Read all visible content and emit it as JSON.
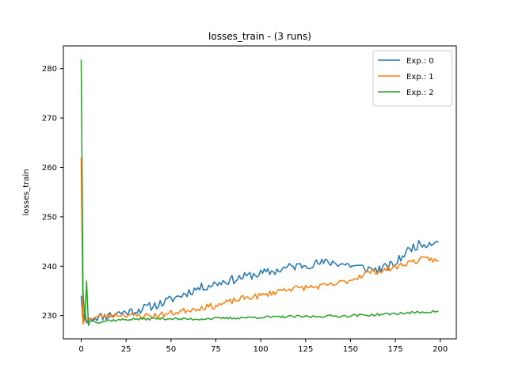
{
  "chart_data": {
    "type": "line",
    "title": "losses_train - (3 runs)",
    "xlabel": "",
    "ylabel": "losses_train",
    "xlim": [
      -9.95,
      208.95
    ],
    "ylim": [
      225.3,
      284.6
    ],
    "xticks": [
      0,
      25,
      50,
      75,
      100,
      125,
      150,
      175,
      200
    ],
    "yticks": [
      230,
      240,
      250,
      260,
      270,
      280
    ],
    "grid": false,
    "legend_position": "top-right",
    "colors": [
      "#1f77b4",
      "#ff7f0e",
      "#2ca02c"
    ],
    "series": [
      {
        "name": "Exp.: 0",
        "keypoints": [
          [
            0,
            234.0
          ],
          [
            1,
            229.0
          ],
          [
            2,
            231.0
          ],
          [
            3,
            228.5
          ],
          [
            5,
            229.5
          ],
          [
            10,
            229.8
          ],
          [
            15,
            230.0
          ],
          [
            20,
            230.5
          ],
          [
            25,
            230.7
          ],
          [
            30,
            231.0
          ],
          [
            35,
            231.5
          ],
          [
            40,
            232.0
          ],
          [
            45,
            232.5
          ],
          [
            50,
            233.3
          ],
          [
            55,
            234.0
          ],
          [
            60,
            234.8
          ],
          [
            65,
            235.5
          ],
          [
            70,
            236.0
          ],
          [
            75,
            236.5
          ],
          [
            80,
            237.0
          ],
          [
            85,
            237.3
          ],
          [
            90,
            237.8
          ],
          [
            95,
            238.2
          ],
          [
            100,
            238.5
          ],
          [
            105,
            238.8
          ],
          [
            110,
            239.2
          ],
          [
            115,
            239.8
          ],
          [
            120,
            240.0
          ],
          [
            125,
            240.3
          ],
          [
            130,
            240.5
          ],
          [
            135,
            240.7
          ],
          [
            140,
            240.8
          ],
          [
            145,
            240.5
          ],
          [
            150,
            240.2
          ],
          [
            155,
            239.8
          ],
          [
            160,
            239.5
          ],
          [
            165,
            239.3
          ],
          [
            170,
            239.8
          ],
          [
            175,
            240.5
          ],
          [
            180,
            242.5
          ],
          [
            185,
            244.0
          ],
          [
            190,
            244.5
          ],
          [
            195,
            244.8
          ],
          [
            199,
            245.5
          ]
        ],
        "noise": 0.9,
        "seed": 11
      },
      {
        "name": "Exp.: 1",
        "keypoints": [
          [
            0,
            262.0
          ],
          [
            1,
            228.3
          ],
          [
            2,
            229.5
          ],
          [
            3,
            229.0
          ],
          [
            5,
            229.5
          ],
          [
            10,
            229.8
          ],
          [
            15,
            230.0
          ],
          [
            20,
            230.2
          ],
          [
            25,
            230.2
          ],
          [
            30,
            230.0
          ],
          [
            35,
            230.0
          ],
          [
            40,
            230.0
          ],
          [
            45,
            230.2
          ],
          [
            50,
            230.5
          ],
          [
            55,
            230.8
          ],
          [
            60,
            231.2
          ],
          [
            65,
            231.5
          ],
          [
            70,
            231.8
          ],
          [
            75,
            232.0
          ],
          [
            80,
            232.5
          ],
          [
            85,
            233.0
          ],
          [
            90,
            233.5
          ],
          [
            95,
            233.8
          ],
          [
            100,
            234.0
          ],
          [
            105,
            234.5
          ],
          [
            110,
            235.0
          ],
          [
            115,
            235.5
          ],
          [
            120,
            235.5
          ],
          [
            125,
            235.7
          ],
          [
            130,
            235.8
          ],
          [
            135,
            236.0
          ],
          [
            140,
            236.2
          ],
          [
            145,
            236.7
          ],
          [
            150,
            237.2
          ],
          [
            155,
            238.0
          ],
          [
            160,
            238.8
          ],
          [
            165,
            239.0
          ],
          [
            170,
            239.3
          ],
          [
            175,
            239.8
          ],
          [
            180,
            240.5
          ],
          [
            185,
            241.0
          ],
          [
            190,
            241.3
          ],
          [
            195,
            241.5
          ],
          [
            199,
            240.8
          ]
        ],
        "noise": 0.6,
        "seed": 23
      },
      {
        "name": "Exp.: 2",
        "keypoints": [
          [
            0,
            281.8
          ],
          [
            1,
            235.0
          ],
          [
            2,
            229.0
          ],
          [
            3,
            237.0
          ],
          [
            4,
            228.0
          ],
          [
            5,
            229.0
          ],
          [
            10,
            228.7
          ],
          [
            15,
            229.0
          ],
          [
            20,
            229.1
          ],
          [
            25,
            229.2
          ],
          [
            30,
            229.3
          ],
          [
            35,
            229.3
          ],
          [
            40,
            229.4
          ],
          [
            45,
            229.4
          ],
          [
            50,
            229.4
          ],
          [
            55,
            229.3
          ],
          [
            60,
            229.3
          ],
          [
            65,
            229.3
          ],
          [
            70,
            229.4
          ],
          [
            75,
            229.4
          ],
          [
            80,
            229.5
          ],
          [
            85,
            229.5
          ],
          [
            90,
            229.6
          ],
          [
            95,
            229.6
          ],
          [
            100,
            229.7
          ],
          [
            105,
            229.7
          ],
          [
            110,
            229.7
          ],
          [
            115,
            229.8
          ],
          [
            120,
            229.8
          ],
          [
            125,
            229.8
          ],
          [
            130,
            229.8
          ],
          [
            135,
            229.9
          ],
          [
            140,
            229.9
          ],
          [
            145,
            229.9
          ],
          [
            150,
            230.0
          ],
          [
            155,
            230.1
          ],
          [
            160,
            230.1
          ],
          [
            165,
            230.2
          ],
          [
            170,
            230.3
          ],
          [
            175,
            230.4
          ],
          [
            180,
            230.5
          ],
          [
            185,
            230.6
          ],
          [
            190,
            230.7
          ],
          [
            195,
            230.8
          ],
          [
            199,
            230.9
          ]
        ],
        "noise": 0.25,
        "seed": 37
      }
    ]
  }
}
